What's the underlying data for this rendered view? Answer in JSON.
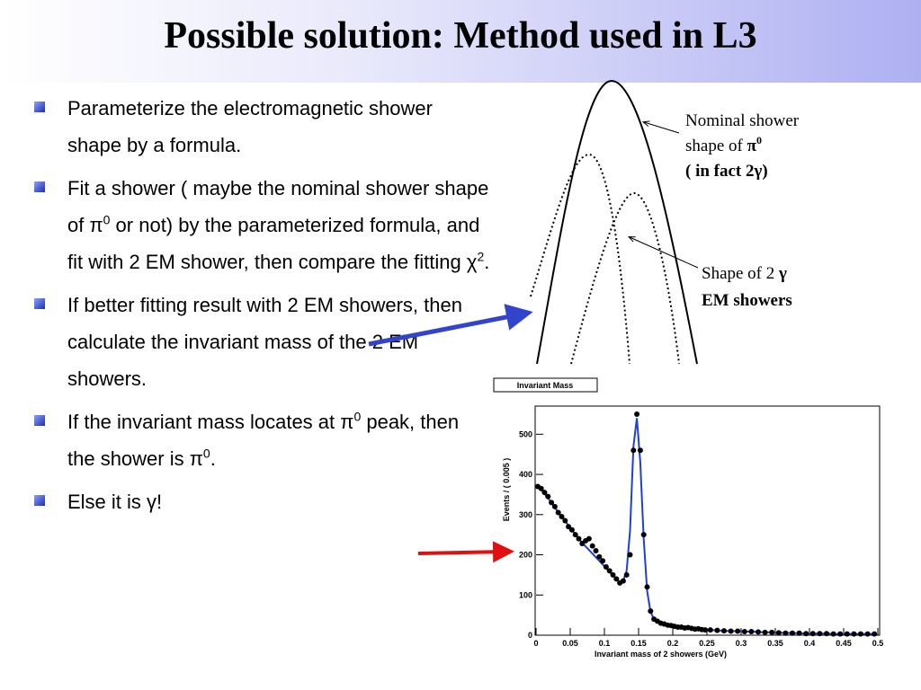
{
  "title": "Possible solution: Method used in L3",
  "bullets": [
    [
      "Parameterize the electromagnetic shower shape by a formula."
    ],
    [
      "Fit a shower ( maybe the nominal shower shape of π",
      "0",
      " or not) by the parameterized formula,  and fit with 2 EM shower, then compare the fitting χ",
      "2",
      "."
    ],
    [
      "If better fitting result with 2 EM showers, then calculate the invariant mass of the 2 EM showers."
    ],
    [
      "If the invariant mass locates at π",
      "0",
      " peak, then the shower is π",
      "0",
      "."
    ],
    [
      "Else it is γ!"
    ]
  ],
  "annotations": {
    "nominal": {
      "line1": "Nominal shower",
      "line2": "shape of ",
      "symbol": "π",
      "sup": "0",
      "line3": "( in fact 2γ)"
    },
    "two_showers": {
      "line1": "Shape of 2 ",
      "symbol": "γ",
      "line2": "EM showers"
    }
  },
  "chart_data": {
    "type": "scatter",
    "title": "Invariant Mass",
    "x_label": "Invariant mass of 2 showers (GeV)",
    "y_label": "Events / ( 0.005 )",
    "xlim": [
      0,
      0.5
    ],
    "ylim": [
      0,
      570
    ],
    "xticks": [
      0,
      0.05,
      0.1,
      0.15,
      0.2,
      0.25,
      0.3,
      0.35,
      0.4,
      0.45,
      0.5
    ],
    "yticks": [
      0,
      100,
      200,
      300,
      400,
      500
    ],
    "x": [
      0.0025,
      0.0075,
      0.0125,
      0.0175,
      0.0225,
      0.0275,
      0.0325,
      0.0375,
      0.0425,
      0.0475,
      0.0525,
      0.0575,
      0.0625,
      0.0675,
      0.0725,
      0.0775,
      0.0825,
      0.0875,
      0.0925,
      0.0975,
      0.1025,
      0.1075,
      0.1125,
      0.1175,
      0.1225,
      0.1275,
      0.1325,
      0.1375,
      0.1425,
      0.1475,
      0.1525,
      0.1575,
      0.1625,
      0.1675,
      0.1725,
      0.1775,
      0.1825,
      0.1875,
      0.1925,
      0.1975,
      0.2025,
      0.2075,
      0.2125,
      0.2175,
      0.2225,
      0.2275,
      0.2325,
      0.2375,
      0.2425,
      0.2475,
      0.255,
      0.265,
      0.275,
      0.285,
      0.295,
      0.305,
      0.315,
      0.325,
      0.335,
      0.345,
      0.355,
      0.365,
      0.375,
      0.385,
      0.395,
      0.405,
      0.415,
      0.425,
      0.435,
      0.445,
      0.455,
      0.465,
      0.475,
      0.485,
      0.495
    ],
    "series": [
      {
        "color": "#000000",
        "values": [
          370,
          365,
          355,
          345,
          330,
          320,
          305,
          295,
          285,
          270,
          262,
          250,
          240,
          228,
          235,
          240,
          222,
          210,
          195,
          185,
          170,
          160,
          150,
          140,
          130,
          135,
          150,
          200,
          460,
          550,
          460,
          250,
          120,
          60,
          40,
          35,
          30,
          28,
          25,
          24,
          22,
          20,
          20,
          18,
          19,
          17,
          15,
          16,
          14,
          13,
          13,
          12,
          11,
          10,
          10,
          9,
          9,
          8,
          7,
          7,
          6,
          5,
          5,
          5,
          4,
          4,
          4,
          4,
          3,
          3,
          3,
          3,
          3,
          3,
          3
        ]
      },
      {
        "color": "#1f3fd6",
        "values": [
          372,
          362,
          352,
          341,
          330,
          318,
          306,
          295,
          284,
          273,
          262,
          251,
          240,
          230,
          221,
          212,
          203,
          194,
          185,
          176,
          167,
          158,
          149,
          140,
          133,
          135,
          160,
          260,
          470,
          540,
          430,
          240,
          110,
          58,
          40,
          33,
          29,
          26,
          24,
          22,
          21,
          20,
          19,
          18,
          17,
          16,
          15,
          14,
          14,
          13,
          13,
          12,
          11,
          10,
          10,
          9,
          9,
          8,
          7,
          7,
          6,
          6,
          5,
          5,
          4,
          4,
          4,
          4,
          3,
          3,
          3,
          3,
          3,
          3,
          3
        ]
      }
    ]
  }
}
